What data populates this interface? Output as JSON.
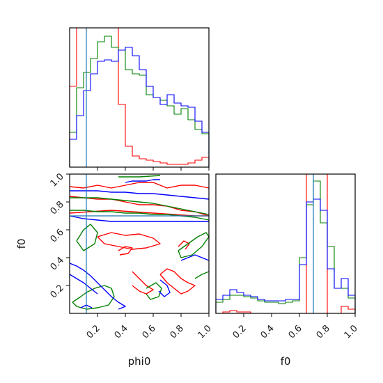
{
  "chart_data": {
    "type": "corner",
    "xlabels": [
      "phi0",
      "f0"
    ],
    "ylabels": [
      "",
      "f0"
    ],
    "xlim": [
      0,
      1
    ],
    "ylim": [
      0,
      1
    ],
    "ticks": [
      0.2,
      0.4,
      0.6,
      0.8,
      1.0
    ],
    "tick_labels": [
      "0.2",
      "0.4",
      "0.6",
      "0.8",
      "1.0"
    ],
    "truth": {
      "phi0": 0.12,
      "f0": 0.7,
      "color": "#1f77b4"
    },
    "grid": false,
    "series_colors": {
      "red": "#ff0000",
      "green": "#008000",
      "blue": "#0000ff"
    },
    "histograms": [
      {
        "parameter": "phi0",
        "bin_edges": [
          0.0,
          0.05,
          0.1,
          0.15,
          0.2,
          0.25,
          0.3,
          0.35,
          0.4,
          0.45,
          0.5,
          0.55,
          0.6,
          0.65,
          0.7,
          0.75,
          0.8,
          0.85,
          0.9,
          0.95,
          1.0
        ],
        "ymax": 1.0,
        "series": [
          {
            "color": "red",
            "values": [
              0.58,
              1.05,
              1.05,
              1.05,
              1.05,
              1.05,
              1.05,
              0.45,
              0.15,
              0.08,
              0.06,
              0.05,
              0.04,
              0.03,
              0.02,
              0.02,
              0.02,
              0.03,
              0.05,
              0.07
            ]
          },
          {
            "color": "green",
            "values": [
              0.25,
              0.57,
              0.68,
              0.78,
              0.9,
              0.94,
              0.86,
              0.84,
              0.7,
              0.67,
              0.66,
              0.52,
              0.5,
              0.48,
              0.44,
              0.38,
              0.42,
              0.34,
              0.27,
              0.24
            ]
          },
          {
            "color": "blue",
            "values": [
              0.2,
              0.37,
              0.55,
              0.67,
              0.76,
              0.77,
              0.76,
              0.84,
              0.86,
              0.8,
              0.7,
              0.58,
              0.5,
              0.45,
              0.52,
              0.46,
              0.44,
              0.43,
              0.33,
              0.25
            ]
          }
        ]
      },
      {
        "parameter": "f0",
        "bin_edges": [
          0.0,
          0.05,
          0.1,
          0.15,
          0.2,
          0.25,
          0.3,
          0.35,
          0.4,
          0.45,
          0.5,
          0.55,
          0.6,
          0.65,
          0.7,
          0.75,
          0.8,
          0.85,
          0.9,
          0.95,
          1.0
        ],
        "ymax": 1.0,
        "series": [
          {
            "color": "red",
            "values": [
              0.0,
              0.01,
              0.02,
              0.01,
              0.01,
              0.0,
              0.0,
              0.0,
              0.0,
              0.0,
              0.0,
              0.0,
              0.0,
              1.05,
              1.05,
              1.05,
              0.0,
              0.0,
              0.05,
              0.03
            ]
          },
          {
            "color": "green",
            "values": [
              0.08,
              0.1,
              0.13,
              0.13,
              0.12,
              0.11,
              0.09,
              0.08,
              0.08,
              0.07,
              0.08,
              0.09,
              0.4,
              0.78,
              0.95,
              0.65,
              0.48,
              0.18,
              0.18,
              0.11
            ]
          },
          {
            "color": "blue",
            "values": [
              0.1,
              0.13,
              0.17,
              0.15,
              0.13,
              0.12,
              0.1,
              0.09,
              0.09,
              0.09,
              0.1,
              0.1,
              0.35,
              0.8,
              0.82,
              0.74,
              0.32,
              0.18,
              0.25,
              0.13
            ]
          }
        ]
      }
    ],
    "contours": {
      "x_parameter": "phi0",
      "y_parameter": "f0",
      "series": [
        {
          "color": "red",
          "paths": [
            [
              [
                0.0,
                0.91
              ],
              [
                0.1,
                0.9
              ],
              [
                0.2,
                0.92
              ],
              [
                0.3,
                0.9
              ],
              [
                0.4,
                0.92
              ],
              [
                0.5,
                0.94
              ],
              [
                0.6,
                0.94
              ],
              [
                0.7,
                0.9
              ],
              [
                0.8,
                0.92
              ],
              [
                0.9,
                0.92
              ],
              [
                1.0,
                0.9
              ]
            ],
            [
              [
                0.0,
                0.84
              ],
              [
                0.1,
                0.83
              ],
              [
                0.2,
                0.82
              ],
              [
                0.3,
                0.82
              ],
              [
                0.4,
                0.8
              ],
              [
                0.5,
                0.78
              ],
              [
                0.6,
                0.78
              ],
              [
                0.7,
                0.77
              ],
              [
                0.8,
                0.74
              ],
              [
                0.9,
                0.73
              ],
              [
                1.0,
                0.7
              ]
            ],
            [
              [
                0.0,
                0.72
              ],
              [
                0.15,
                0.73
              ],
              [
                0.3,
                0.74
              ],
              [
                0.45,
                0.73
              ],
              [
                0.6,
                0.72
              ],
              [
                0.75,
                0.71
              ],
              [
                0.9,
                0.7
              ],
              [
                1.0,
                0.7
              ]
            ],
            [
              [
                0.2,
                0.55
              ],
              [
                0.3,
                0.58
              ],
              [
                0.4,
                0.56
              ],
              [
                0.5,
                0.57
              ],
              [
                0.6,
                0.54
              ],
              [
                0.65,
                0.5
              ],
              [
                0.55,
                0.47
              ],
              [
                0.45,
                0.46
              ],
              [
                0.35,
                0.48
              ],
              [
                0.25,
                0.5
              ],
              [
                0.2,
                0.55
              ]
            ],
            [
              [
                0.45,
                0.3
              ],
              [
                0.5,
                0.25
              ],
              [
                0.55,
                0.2
              ],
              [
                0.6,
                0.17
              ],
              [
                0.55,
                0.14
              ],
              [
                0.5,
                0.16
              ],
              [
                0.45,
                0.2
              ]
            ],
            [
              [
                0.65,
                0.28
              ],
              [
                0.7,
                0.32
              ],
              [
                0.75,
                0.3
              ],
              [
                0.8,
                0.25
              ],
              [
                0.85,
                0.22
              ],
              [
                0.9,
                0.2
              ],
              [
                0.85,
                0.16
              ],
              [
                0.8,
                0.14
              ],
              [
                0.75,
                0.18
              ],
              [
                0.7,
                0.22
              ],
              [
                0.65,
                0.28
              ]
            ],
            [
              [
                0.35,
                0.45
              ],
              [
                0.4,
                0.48
              ],
              [
                0.45,
                0.47
              ],
              [
                0.42,
                0.43
              ],
              [
                0.36,
                0.42
              ]
            ],
            [
              [
                0.78,
                0.48
              ],
              [
                0.82,
                0.52
              ],
              [
                0.86,
                0.5
              ],
              [
                0.83,
                0.46
              ]
            ]
          ]
        },
        {
          "color": "green",
          "paths": [
            [
              [
                0.0,
                0.83
              ],
              [
                0.1,
                0.83
              ],
              [
                0.2,
                0.83
              ],
              [
                0.3,
                0.82
              ],
              [
                0.4,
                0.81
              ],
              [
                0.5,
                0.8
              ],
              [
                0.6,
                0.79
              ],
              [
                0.7,
                0.77
              ],
              [
                0.8,
                0.75
              ],
              [
                0.9,
                0.73
              ],
              [
                1.0,
                0.71
              ]
            ],
            [
              [
                0.0,
                0.74
              ],
              [
                0.1,
                0.74
              ],
              [
                0.2,
                0.73
              ],
              [
                0.3,
                0.73
              ],
              [
                0.4,
                0.72
              ],
              [
                0.5,
                0.72
              ],
              [
                0.6,
                0.71
              ],
              [
                0.7,
                0.71
              ],
              [
                0.8,
                0.7
              ],
              [
                0.9,
                0.69
              ],
              [
                1.0,
                0.67
              ]
            ],
            [
              [
                0.05,
                0.52
              ],
              [
                0.1,
                0.6
              ],
              [
                0.15,
                0.64
              ],
              [
                0.2,
                0.58
              ],
              [
                0.18,
                0.5
              ],
              [
                0.1,
                0.45
              ],
              [
                0.05,
                0.52
              ]
            ],
            [
              [
                0.78,
                0.45
              ],
              [
                0.85,
                0.5
              ],
              [
                0.92,
                0.55
              ],
              [
                0.98,
                0.58
              ],
              [
                1.0,
                0.55
              ],
              [
                0.95,
                0.48
              ],
              [
                0.88,
                0.42
              ],
              [
                0.8,
                0.4
              ],
              [
                0.78,
                0.45
              ]
            ],
            [
              [
                0.02,
                0.08
              ],
              [
                0.08,
                0.12
              ],
              [
                0.12,
                0.15
              ],
              [
                0.18,
                0.18
              ],
              [
                0.25,
                0.2
              ],
              [
                0.3,
                0.18
              ],
              [
                0.32,
                0.12
              ],
              [
                0.28,
                0.06
              ],
              [
                0.2,
                0.04
              ],
              [
                0.12,
                0.03
              ],
              [
                0.05,
                0.05
              ],
              [
                0.02,
                0.08
              ]
            ],
            [
              [
                0.55,
                0.18
              ],
              [
                0.62,
                0.22
              ],
              [
                0.66,
                0.18
              ],
              [
                0.64,
                0.12
              ],
              [
                0.58,
                0.1
              ],
              [
                0.55,
                0.14
              ]
            ],
            [
              [
                0.9,
                0.25
              ],
              [
                0.95,
                0.28
              ],
              [
                1.0,
                0.3
              ]
            ],
            [
              [
                0.35,
                0.98
              ],
              [
                0.5,
                0.98
              ],
              [
                0.65,
                0.99
              ]
            ]
          ]
        },
        {
          "color": "blue",
          "paths": [
            [
              [
                0.0,
                0.88
              ],
              [
                0.1,
                0.88
              ],
              [
                0.2,
                0.88
              ],
              [
                0.3,
                0.87
              ],
              [
                0.4,
                0.87
              ],
              [
                0.5,
                0.86
              ],
              [
                0.6,
                0.86
              ],
              [
                0.7,
                0.85
              ],
              [
                0.8,
                0.84
              ],
              [
                0.9,
                0.83
              ],
              [
                1.0,
                0.82
              ]
            ],
            [
              [
                0.0,
                0.7
              ],
              [
                0.1,
                0.68
              ],
              [
                0.2,
                0.67
              ],
              [
                0.3,
                0.66
              ],
              [
                0.4,
                0.66
              ],
              [
                0.5,
                0.66
              ],
              [
                0.6,
                0.66
              ],
              [
                0.7,
                0.66
              ],
              [
                0.8,
                0.66
              ],
              [
                0.9,
                0.66
              ],
              [
                1.0,
                0.66
              ]
            ],
            [
              [
                0.0,
                0.36
              ],
              [
                0.05,
                0.34
              ],
              [
                0.1,
                0.31
              ],
              [
                0.15,
                0.27
              ],
              [
                0.2,
                0.22
              ],
              [
                0.25,
                0.17
              ],
              [
                0.3,
                0.12
              ],
              [
                0.35,
                0.08
              ],
              [
                0.4,
                0.05
              ],
              [
                0.35,
                0.03
              ]
            ],
            [
              [
                0.0,
                0.28
              ],
              [
                0.05,
                0.25
              ],
              [
                0.1,
                0.22
              ],
              [
                0.15,
                0.18
              ],
              [
                0.2,
                0.14
              ]
            ],
            [
              [
                0.4,
                0.94
              ],
              [
                0.45,
                0.95
              ],
              [
                0.55,
                0.95
              ],
              [
                0.6,
                0.96
              ],
              [
                0.65,
                0.96
              ]
            ],
            [
              [
                0.65,
                0.24
              ],
              [
                0.7,
                0.2
              ],
              [
                0.72,
                0.15
              ],
              [
                0.68,
                0.12
              ],
              [
                0.64,
                0.16
              ]
            ],
            [
              [
                0.8,
                0.38
              ],
              [
                0.85,
                0.4
              ],
              [
                0.9,
                0.42
              ],
              [
                0.95,
                0.4
              ],
              [
                1.0,
                0.38
              ]
            ],
            [
              [
                0.08,
                0.04
              ],
              [
                0.12,
                0.06
              ],
              [
                0.16,
                0.04
              ]
            ]
          ]
        }
      ]
    }
  }
}
